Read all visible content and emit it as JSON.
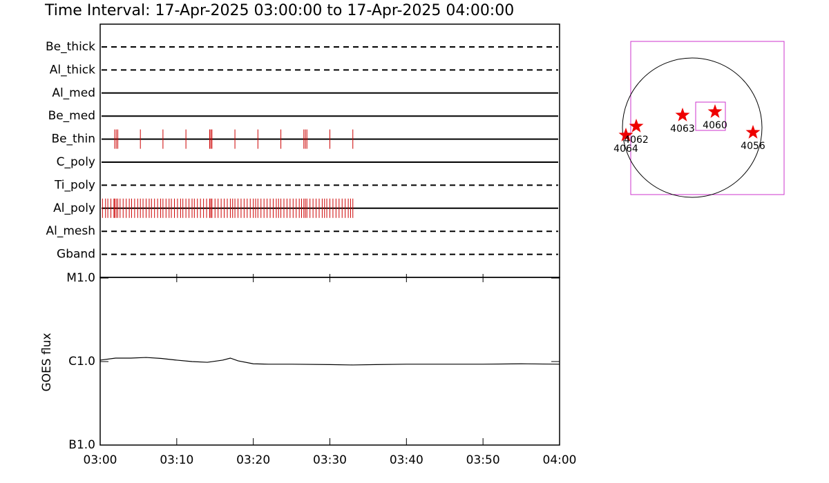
{
  "title": "Time Interval: 17-Apr-2025 03:00:00 to 17-Apr-2025 04:00:00",
  "chart_data": [
    {
      "type": "timeline",
      "xlim": [
        0,
        60
      ],
      "event_color": "#cc0000",
      "rows": [
        {
          "name": "Be_thick",
          "style": "dashed",
          "events": []
        },
        {
          "name": "Al_thick",
          "style": "dashed",
          "events": []
        },
        {
          "name": "Al_med",
          "style": "solid",
          "events": []
        },
        {
          "name": "Be_med",
          "style": "solid",
          "events": []
        },
        {
          "name": "Be_thin",
          "style": "solid",
          "events": [
            1.9,
            2.1,
            2.3,
            5.25,
            8.2,
            11.2,
            14.3,
            14.45,
            14.6,
            17.6,
            20.6,
            23.6,
            26.6,
            26.8,
            27.0,
            30.0,
            33.0
          ]
        },
        {
          "name": "C_poly",
          "style": "solid",
          "events": []
        },
        {
          "name": "Ti_poly",
          "style": "dashed",
          "events": []
        },
        {
          "name": "Al_poly",
          "style": "solid",
          "events": [
            0.3,
            0.7,
            1.0,
            1.4,
            1.8,
            1.9,
            2.1,
            2.3,
            2.6,
            3.0,
            3.4,
            3.8,
            4.1,
            4.5,
            4.9,
            5.25,
            5.6,
            6.0,
            6.4,
            6.7,
            7.1,
            7.5,
            7.9,
            8.2,
            8.6,
            9.0,
            9.3,
            9.7,
            10.1,
            10.5,
            10.8,
            11.2,
            11.6,
            12.0,
            12.3,
            12.7,
            13.1,
            13.5,
            13.9,
            14.3,
            14.45,
            14.6,
            15.0,
            15.4,
            15.8,
            16.2,
            16.6,
            17.0,
            17.3,
            17.6,
            18.0,
            18.4,
            18.8,
            19.2,
            19.6,
            20.0,
            20.3,
            20.6,
            21.0,
            21.4,
            21.8,
            22.2,
            22.6,
            23.0,
            23.3,
            23.6,
            24.0,
            24.4,
            24.8,
            25.2,
            25.6,
            26.0,
            26.3,
            26.6,
            26.8,
            27.0,
            27.4,
            27.8,
            28.2,
            28.6,
            29.0,
            29.3,
            29.6,
            30.0,
            30.4,
            30.8,
            31.2,
            31.6,
            32.0,
            32.4,
            32.7,
            33.0
          ]
        },
        {
          "name": "Al_mesh",
          "style": "dashed",
          "events": []
        },
        {
          "name": "Gband",
          "style": "dashed",
          "events": []
        }
      ]
    },
    {
      "type": "line",
      "ylabel": "GOES flux",
      "log_scale": true,
      "xlim": [
        0,
        60
      ],
      "xticks": [
        {
          "value": 0,
          "label": "03:00"
        },
        {
          "value": 10,
          "label": "03:10"
        },
        {
          "value": 20,
          "label": "03:20"
        },
        {
          "value": 30,
          "label": "03:30"
        },
        {
          "value": 40,
          "label": "03:40"
        },
        {
          "value": 50,
          "label": "03:50"
        },
        {
          "value": 60,
          "label": "04:00"
        }
      ],
      "ylim": [
        1e-07,
        1e-05
      ],
      "yticks": [
        {
          "value": 1e-07,
          "label": "B1.0"
        },
        {
          "value": 1e-06,
          "label": "C1.0"
        },
        {
          "value": 1e-05,
          "label": "M1.0"
        }
      ],
      "x": [
        0,
        2,
        4,
        6,
        8,
        10,
        12,
        14,
        16,
        17,
        18,
        20,
        22,
        25,
        30,
        33,
        36,
        40,
        45,
        50,
        55,
        60
      ],
      "series": [
        {
          "color": "#000000",
          "values": [
            1.04e-06,
            1.1e-06,
            1.1e-06,
            1.12e-06,
            1.09e-06,
            1.04e-06,
            1e-06,
            9.8e-07,
            1.04e-06,
            1.1e-06,
            1.02e-06,
            9.4e-07,
            9.3e-07,
            9.3e-07,
            9.2e-07,
            9.1e-07,
            9.2e-07,
            9.3e-07,
            9.3e-07,
            9.3e-07,
            9.4e-07,
            9.3e-07
          ]
        }
      ]
    }
  ],
  "map": {
    "regions": [
      {
        "label": "4064"
      },
      {
        "label": "4062"
      },
      {
        "label": "4063"
      },
      {
        "label": "4060"
      },
      {
        "label": "4056"
      }
    ]
  }
}
